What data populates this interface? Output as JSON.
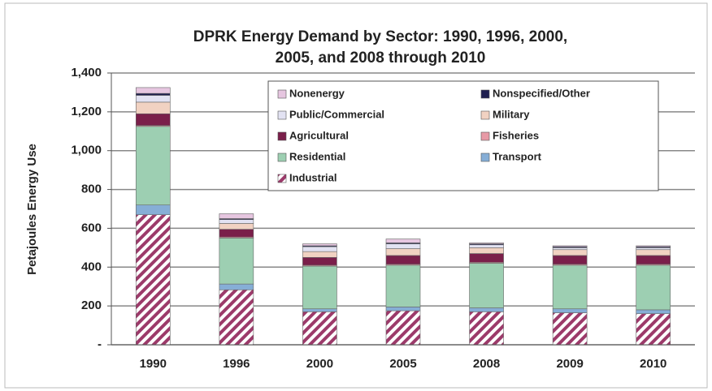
{
  "chart_data": {
    "type": "stacked-bar",
    "title": [
      "DPRK Energy Demand by Sector: 1990, 1996, 2000,",
      "2005, and 2008 through 2010"
    ],
    "y_label": "Petajoules Energy Use",
    "categories": [
      "1990",
      "1996",
      "2000",
      "2005",
      "2008",
      "2009",
      "2010"
    ],
    "series": [
      {
        "name": "Industrial",
        "color": "#9c3a6a",
        "pattern": "hatch",
        "values": [
          670,
          283,
          170,
          175,
          170,
          165,
          160
        ]
      },
      {
        "name": "Transport",
        "color": "#86aed6",
        "values": [
          50,
          30,
          15,
          20,
          20,
          20,
          20
        ]
      },
      {
        "name": "Residential",
        "color": "#9dcfb2",
        "values": [
          405,
          237,
          220,
          215,
          230,
          225,
          230
        ]
      },
      {
        "name": "Fisheries",
        "color": "#e79aa6",
        "values": [
          5,
          5,
          5,
          5,
          5,
          5,
          5
        ]
      },
      {
        "name": "Agricultural",
        "color": "#7a1f4a",
        "values": [
          60,
          40,
          40,
          45,
          45,
          45,
          45
        ]
      },
      {
        "name": "Military",
        "color": "#f1d2c2",
        "values": [
          60,
          30,
          30,
          35,
          30,
          30,
          30
        ]
      },
      {
        "name": "Public/Commercial",
        "color": "#e2e2f2",
        "values": [
          35,
          20,
          25,
          25,
          15,
          10,
          10
        ]
      },
      {
        "name": "Nonspecified/Other",
        "color": "#1f1f50",
        "values": [
          10,
          5,
          5,
          5,
          5,
          5,
          5
        ]
      },
      {
        "name": "Nonenergy",
        "color": "#e6c6e0",
        "values": [
          30,
          25,
          10,
          20,
          5,
          5,
          5
        ]
      }
    ],
    "ylim": [
      0,
      1400
    ],
    "yticks": [
      {
        "value": 0,
        "label": "-"
      },
      200,
      400,
      600,
      800,
      {
        "value": 1000,
        "label": "1,000"
      },
      {
        "value": 1200,
        "label": "1,200"
      },
      {
        "value": 1400,
        "label": "1,400"
      }
    ],
    "grid": true,
    "legend": "top-right"
  }
}
